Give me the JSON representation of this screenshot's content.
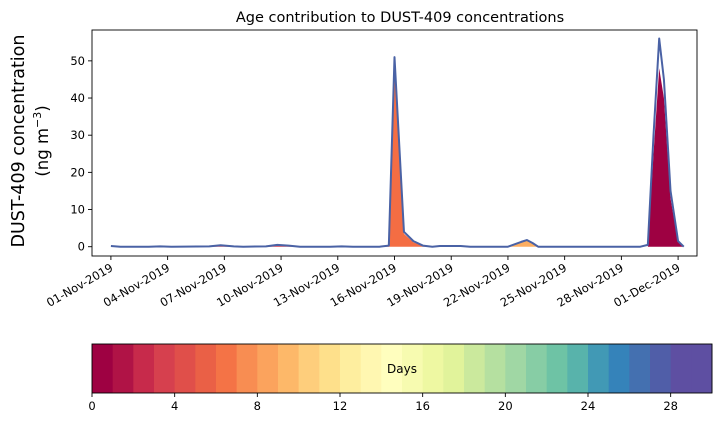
{
  "chart_data": {
    "type": "area",
    "title": "Age contribution to DUST-409 concentrations",
    "ylabel_line1": "DUST-409 concentration",
    "ylabel_line2": "(ng m",
    "ylabel_sup": "−3",
    "ylabel_close": ")",
    "x_start": "2019-10-31",
    "x_end": "2019-12-02",
    "ylim": [
      -2.5,
      58.3
    ],
    "yticks": [
      0,
      10,
      20,
      30,
      40,
      50
    ],
    "xticks": [
      {
        "label": "01-Nov-2019",
        "day": 1
      },
      {
        "label": "04-Nov-2019",
        "day": 4
      },
      {
        "label": "07-Nov-2019",
        "day": 7
      },
      {
        "label": "10-Nov-2019",
        "day": 10
      },
      {
        "label": "13-Nov-2019",
        "day": 13
      },
      {
        "label": "16-Nov-2019",
        "day": 16
      },
      {
        "label": "19-Nov-2019",
        "day": 19
      },
      {
        "label": "22-Nov-2019",
        "day": 22
      },
      {
        "label": "25-Nov-2019",
        "day": 25
      },
      {
        "label": "28-Nov-2019",
        "day": 28
      },
      {
        "label": "01-Dec-2019",
        "day": 31
      }
    ],
    "total_series": {
      "name": "",
      "points": [
        [
          1.0,
          0.2
        ],
        [
          1.5,
          0.0
        ],
        [
          3.0,
          0.0
        ],
        [
          3.6,
          0.1
        ],
        [
          4.2,
          0.0
        ],
        [
          6.2,
          0.1
        ],
        [
          6.8,
          0.4
        ],
        [
          7.5,
          0.1
        ],
        [
          8.0,
          0.0
        ],
        [
          9.2,
          0.1
        ],
        [
          9.8,
          0.5
        ],
        [
          10.4,
          0.3
        ],
        [
          11.0,
          0.0
        ],
        [
          12.6,
          0.0
        ],
        [
          13.2,
          0.1
        ],
        [
          13.8,
          0.0
        ],
        [
          15.2,
          0.0
        ],
        [
          15.7,
          0.3
        ],
        [
          16.0,
          51.0
        ],
        [
          16.5,
          4.0
        ],
        [
          17.0,
          1.5
        ],
        [
          17.5,
          0.3
        ],
        [
          18.0,
          0.0
        ],
        [
          18.4,
          0.2
        ],
        [
          19.5,
          0.2
        ],
        [
          20.0,
          0.0
        ],
        [
          22.0,
          0.0
        ],
        [
          22.7,
          1.3
        ],
        [
          23.0,
          1.8
        ],
        [
          23.3,
          1.0
        ],
        [
          23.6,
          0.0
        ],
        [
          29.0,
          0.0
        ],
        [
          29.4,
          0.5
        ],
        [
          29.7,
          30.0
        ],
        [
          30.0,
          56.0
        ],
        [
          30.25,
          45.0
        ],
        [
          30.6,
          15.0
        ],
        [
          31.0,
          1.5
        ],
        [
          31.3,
          0.0
        ]
      ]
    },
    "age_layers": [
      {
        "age_day": 0,
        "color": "#9e0142",
        "points": [
          [
            29.4,
            0
          ],
          [
            29.7,
            25
          ],
          [
            30.0,
            48
          ],
          [
            30.25,
            40
          ],
          [
            30.6,
            13
          ],
          [
            31.0,
            1.2
          ],
          [
            31.3,
            0
          ]
        ]
      },
      {
        "age_day": 2,
        "color": "#d53e4f",
        "points": [
          [
            6.2,
            0
          ],
          [
            6.8,
            0.3
          ],
          [
            7.5,
            0
          ],
          [
            9.2,
            0
          ],
          [
            9.8,
            0.4
          ],
          [
            10.4,
            0.2
          ],
          [
            11.0,
            0
          ]
        ]
      },
      {
        "age_day": 6,
        "color": "#f46d43",
        "points": [
          [
            15.2,
            0
          ],
          [
            15.7,
            0.2
          ],
          [
            16.0,
            49
          ],
          [
            16.5,
            3.5
          ],
          [
            17.0,
            1.2
          ],
          [
            17.5,
            0.2
          ],
          [
            18.0,
            0
          ]
        ]
      },
      {
        "age_day": 10,
        "color": "#fdae61",
        "points": [
          [
            22.0,
            0
          ],
          [
            22.7,
            1.2
          ],
          [
            23.0,
            1.7
          ],
          [
            23.3,
            0.9
          ],
          [
            23.6,
            0
          ]
        ]
      }
    ],
    "colorbar": {
      "label": "Days",
      "min": 0,
      "max": 30,
      "ticks": [
        0,
        4,
        8,
        12,
        16,
        20,
        24,
        28
      ],
      "colors": [
        "#9e0142",
        "#b01346",
        "#c72a4b",
        "#d6404e",
        "#e04f4a",
        "#ea6046",
        "#f47346",
        "#f88d52",
        "#fba35d",
        "#fdb869",
        "#fece7c",
        "#fee08b",
        "#feee9f",
        "#fff7b1",
        "#fffebe",
        "#f7fbb0",
        "#eef8a2",
        "#e1f39b",
        "#cbe99d",
        "#b5e0a0",
        "#a0d7a4",
        "#87cda5",
        "#6ec3a5",
        "#58b3ab",
        "#4199b5",
        "#3583ba",
        "#4470b0",
        "#505ea8",
        "#5e4fa2",
        "#5e4fa2"
      ]
    },
    "line_color": "#4a62a5"
  }
}
